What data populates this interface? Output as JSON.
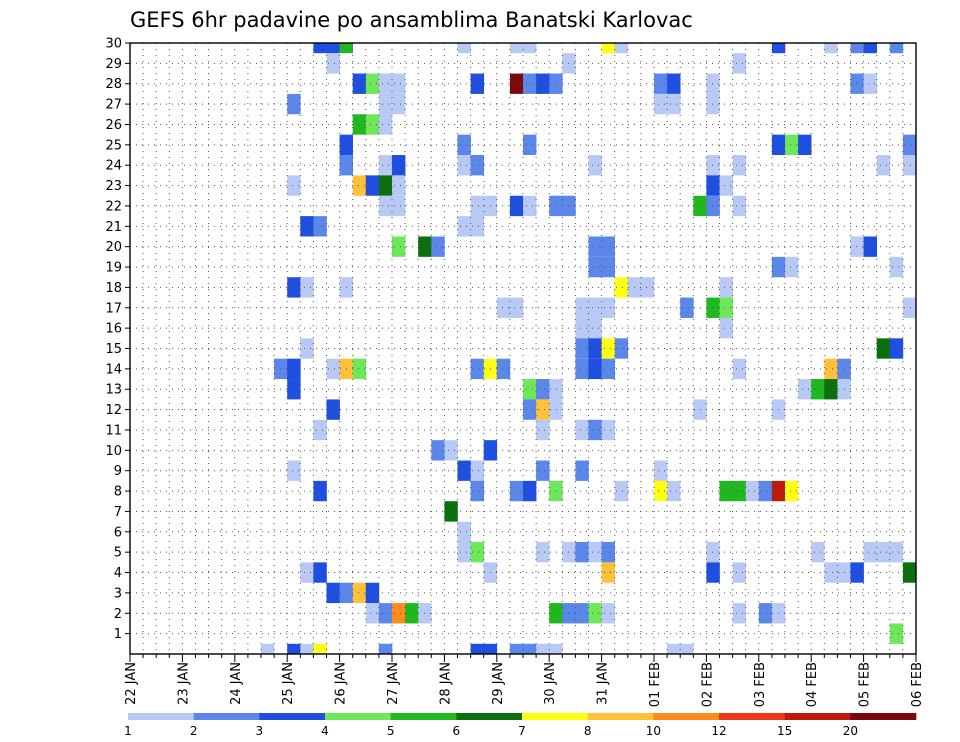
{
  "chart_data": {
    "type": "heatmap",
    "title": "GEFS 6hr padavine po ansamblima Banatski Karlovac",
    "xlabel": "",
    "ylabel": "",
    "x_range": [
      0,
      60
    ],
    "y_range": [
      0,
      30
    ],
    "x_ticks": [
      {
        "label": "22 JAN",
        "x": 0
      },
      {
        "label": "23 JAN",
        "x": 4
      },
      {
        "label": "24 JAN",
        "x": 8
      },
      {
        "label": "25 JAN",
        "x": 12
      },
      {
        "label": "26 JAN",
        "x": 16
      },
      {
        "label": "27 JAN",
        "x": 20
      },
      {
        "label": "28 JAN",
        "x": 24
      },
      {
        "label": "29 JAN",
        "x": 28
      },
      {
        "label": "30 JAN",
        "x": 32
      },
      {
        "label": "31 JAN",
        "x": 36
      },
      {
        "label": "01 FEB",
        "x": 40
      },
      {
        "label": "02 FEB",
        "x": 44
      },
      {
        "label": "03 FEB",
        "x": 48
      },
      {
        "label": "04 FEB",
        "x": 52
      },
      {
        "label": "05 FEB",
        "x": 56
      },
      {
        "label": "06 FEB",
        "x": 60
      }
    ],
    "y_ticks": [
      "1",
      "2",
      "3",
      "4",
      "5",
      "6",
      "7",
      "8",
      "9",
      "10",
      "11",
      "12",
      "13",
      "14",
      "15",
      "16",
      "17",
      "18",
      "19",
      "20",
      "21",
      "22",
      "23",
      "24",
      "25",
      "26",
      "27",
      "28",
      "29",
      "30"
    ],
    "grid": true,
    "colorbar": {
      "labels": [
        "1",
        "2",
        "3",
        "4",
        "5",
        "6",
        "7",
        "8",
        "10",
        "12",
        "15",
        "20"
      ],
      "colors": [
        "#b9c9f5",
        "#5b86ea",
        "#1f4fe0",
        "#6ee85a",
        "#1fb81f",
        "#0b6f0b",
        "#ffff12",
        "#ffc03a",
        "#ff8c1a",
        "#ee3a1a",
        "#bf1a0a",
        "#7a0a0a"
      ]
    },
    "cell_levels": [
      "1-2",
      "2-3",
      "3-4",
      "4-5",
      "5-6",
      "6-7",
      "7-8",
      "8-10",
      "10-12",
      "12-15",
      "15-20",
      "20+"
    ],
    "cells": [
      [
        30,
        14,
        3
      ],
      [
        30,
        15,
        3
      ],
      [
        30,
        16,
        5
      ],
      [
        30,
        25,
        1
      ],
      [
        30,
        29,
        1
      ],
      [
        30,
        30,
        1
      ],
      [
        30,
        36,
        7
      ],
      [
        30,
        37,
        1
      ],
      [
        30,
        49,
        3
      ],
      [
        30,
        53,
        1
      ],
      [
        30,
        55,
        2
      ],
      [
        30,
        56,
        3
      ],
      [
        30,
        58,
        2
      ],
      [
        29,
        15,
        1
      ],
      [
        29,
        33,
        1
      ],
      [
        29,
        46,
        1
      ],
      [
        28,
        17,
        3
      ],
      [
        28,
        18,
        4
      ],
      [
        28,
        19,
        1
      ],
      [
        28,
        20,
        1
      ],
      [
        28,
        26,
        3
      ],
      [
        28,
        29,
        12
      ],
      [
        28,
        30,
        2
      ],
      [
        28,
        31,
        3
      ],
      [
        28,
        32,
        2
      ],
      [
        28,
        40,
        2
      ],
      [
        28,
        41,
        3
      ],
      [
        28,
        44,
        1
      ],
      [
        28,
        55,
        2
      ],
      [
        28,
        56,
        1
      ],
      [
        27,
        12,
        2
      ],
      [
        27,
        19,
        1
      ],
      [
        27,
        20,
        1
      ],
      [
        27,
        40,
        1
      ],
      [
        27,
        41,
        1
      ],
      [
        27,
        44,
        1
      ],
      [
        26,
        17,
        5
      ],
      [
        26,
        18,
        4
      ],
      [
        26,
        19,
        1
      ],
      [
        25,
        16,
        3
      ],
      [
        25,
        25,
        2
      ],
      [
        25,
        30,
        2
      ],
      [
        25,
        49,
        3
      ],
      [
        25,
        50,
        4
      ],
      [
        25,
        51,
        3
      ],
      [
        25,
        59,
        2
      ],
      [
        24,
        16,
        2
      ],
      [
        24,
        19,
        1
      ],
      [
        24,
        20,
        3
      ],
      [
        24,
        25,
        1
      ],
      [
        24,
        26,
        2
      ],
      [
        24,
        35,
        1
      ],
      [
        24,
        44,
        1
      ],
      [
        24,
        46,
        1
      ],
      [
        24,
        57,
        1
      ],
      [
        24,
        59,
        1
      ],
      [
        23,
        12,
        1
      ],
      [
        23,
        17,
        8
      ],
      [
        23,
        18,
        3
      ],
      [
        23,
        19,
        6
      ],
      [
        23,
        20,
        1
      ],
      [
        23,
        44,
        3
      ],
      [
        23,
        45,
        1
      ],
      [
        22,
        19,
        1
      ],
      [
        22,
        20,
        1
      ],
      [
        22,
        26,
        1
      ],
      [
        22,
        27,
        1
      ],
      [
        22,
        29,
        3
      ],
      [
        22,
        30,
        1
      ],
      [
        22,
        32,
        2
      ],
      [
        22,
        33,
        2
      ],
      [
        22,
        43,
        5
      ],
      [
        22,
        44,
        2
      ],
      [
        22,
        46,
        1
      ],
      [
        21,
        13,
        3
      ],
      [
        21,
        14,
        2
      ],
      [
        21,
        25,
        1
      ],
      [
        21,
        26,
        1
      ],
      [
        20,
        20,
        4
      ],
      [
        20,
        22,
        6
      ],
      [
        20,
        23,
        2
      ],
      [
        20,
        35,
        2
      ],
      [
        20,
        36,
        2
      ],
      [
        20,
        55,
        1
      ],
      [
        20,
        56,
        3
      ],
      [
        19,
        35,
        2
      ],
      [
        19,
        36,
        2
      ],
      [
        19,
        49,
        2
      ],
      [
        19,
        50,
        1
      ],
      [
        19,
        58,
        1
      ],
      [
        18,
        12,
        3
      ],
      [
        18,
        13,
        1
      ],
      [
        18,
        16,
        1
      ],
      [
        18,
        37,
        7
      ],
      [
        18,
        38,
        1
      ],
      [
        18,
        39,
        1
      ],
      [
        18,
        45,
        1
      ],
      [
        17,
        28,
        1
      ],
      [
        17,
        29,
        1
      ],
      [
        17,
        34,
        1
      ],
      [
        17,
        35,
        1
      ],
      [
        17,
        36,
        1
      ],
      [
        17,
        42,
        2
      ],
      [
        17,
        44,
        5
      ],
      [
        17,
        45,
        4
      ],
      [
        17,
        59,
        1
      ],
      [
        16,
        34,
        1
      ],
      [
        16,
        35,
        1
      ],
      [
        16,
        45,
        1
      ],
      [
        15,
        13,
        1
      ],
      [
        15,
        34,
        2
      ],
      [
        15,
        35,
        3
      ],
      [
        15,
        36,
        7
      ],
      [
        15,
        37,
        2
      ],
      [
        15,
        57,
        6
      ],
      [
        15,
        58,
        3
      ],
      [
        14,
        11,
        2
      ],
      [
        14,
        12,
        3
      ],
      [
        14,
        15,
        1
      ],
      [
        14,
        16,
        8
      ],
      [
        14,
        17,
        4
      ],
      [
        14,
        26,
        2
      ],
      [
        14,
        27,
        7
      ],
      [
        14,
        28,
        2
      ],
      [
        14,
        34,
        2
      ],
      [
        14,
        35,
        3
      ],
      [
        14,
        36,
        2
      ],
      [
        14,
        46,
        1
      ],
      [
        14,
        53,
        8
      ],
      [
        14,
        54,
        2
      ],
      [
        13,
        12,
        3
      ],
      [
        13,
        30,
        4
      ],
      [
        13,
        31,
        2
      ],
      [
        13,
        32,
        1
      ],
      [
        13,
        51,
        1
      ],
      [
        13,
        52,
        5
      ],
      [
        13,
        53,
        6
      ],
      [
        13,
        54,
        1
      ],
      [
        12,
        15,
        3
      ],
      [
        12,
        30,
        2
      ],
      [
        12,
        31,
        8
      ],
      [
        12,
        32,
        1
      ],
      [
        12,
        43,
        1
      ],
      [
        12,
        49,
        1
      ],
      [
        11,
        14,
        1
      ],
      [
        11,
        31,
        1
      ],
      [
        11,
        34,
        1
      ],
      [
        11,
        35,
        2
      ],
      [
        11,
        36,
        1
      ],
      [
        10,
        23,
        2
      ],
      [
        10,
        24,
        1
      ],
      [
        10,
        27,
        3
      ],
      [
        9,
        12,
        1
      ],
      [
        9,
        25,
        3
      ],
      [
        9,
        26,
        1
      ],
      [
        9,
        31,
        2
      ],
      [
        9,
        34,
        2
      ],
      [
        9,
        40,
        1
      ],
      [
        8,
        14,
        3
      ],
      [
        8,
        26,
        2
      ],
      [
        8,
        29,
        2
      ],
      [
        8,
        30,
        3
      ],
      [
        8,
        32,
        4
      ],
      [
        8,
        37,
        1
      ],
      [
        8,
        40,
        7
      ],
      [
        8,
        41,
        1
      ],
      [
        8,
        45,
        5
      ],
      [
        8,
        46,
        5
      ],
      [
        8,
        47,
        1
      ],
      [
        8,
        48,
        2
      ],
      [
        8,
        49,
        11
      ],
      [
        8,
        50,
        7
      ],
      [
        7,
        24,
        6
      ],
      [
        6,
        25,
        1
      ],
      [
        5,
        25,
        1
      ],
      [
        5,
        26,
        4
      ],
      [
        5,
        31,
        1
      ],
      [
        5,
        33,
        1
      ],
      [
        5,
        34,
        2
      ],
      [
        5,
        35,
        1
      ],
      [
        5,
        36,
        2
      ],
      [
        5,
        44,
        1
      ],
      [
        5,
        52,
        1
      ],
      [
        5,
        56,
        1
      ],
      [
        5,
        57,
        1
      ],
      [
        5,
        58,
        1
      ],
      [
        4,
        13,
        1
      ],
      [
        4,
        14,
        3
      ],
      [
        4,
        27,
        1
      ],
      [
        4,
        36,
        8
      ],
      [
        4,
        44,
        3
      ],
      [
        4,
        46,
        1
      ],
      [
        4,
        53,
        1
      ],
      [
        4,
        54,
        1
      ],
      [
        4,
        55,
        3
      ],
      [
        4,
        59,
        6
      ],
      [
        3,
        15,
        3
      ],
      [
        3,
        16,
        2
      ],
      [
        3,
        17,
        8
      ],
      [
        3,
        18,
        3
      ],
      [
        2,
        18,
        1
      ],
      [
        2,
        19,
        2
      ],
      [
        2,
        20,
        9
      ],
      [
        2,
        21,
        5
      ],
      [
        2,
        22,
        1
      ],
      [
        2,
        32,
        5
      ],
      [
        2,
        33,
        2
      ],
      [
        2,
        34,
        2
      ],
      [
        2,
        35,
        4
      ],
      [
        2,
        36,
        1
      ],
      [
        2,
        46,
        1
      ],
      [
        2,
        48,
        2
      ],
      [
        2,
        49,
        1
      ],
      [
        1,
        58,
        4
      ],
      [
        0,
        10,
        1
      ],
      [
        0,
        12,
        3
      ],
      [
        0,
        13,
        1
      ],
      [
        0,
        14,
        7
      ],
      [
        0,
        19,
        2
      ],
      [
        0,
        26,
        3
      ],
      [
        0,
        27,
        3
      ],
      [
        0,
        29,
        2
      ],
      [
        0,
        30,
        2
      ],
      [
        0,
        31,
        1
      ],
      [
        0,
        32,
        1
      ],
      [
        0,
        41,
        1
      ],
      [
        0,
        42,
        1
      ]
    ]
  }
}
